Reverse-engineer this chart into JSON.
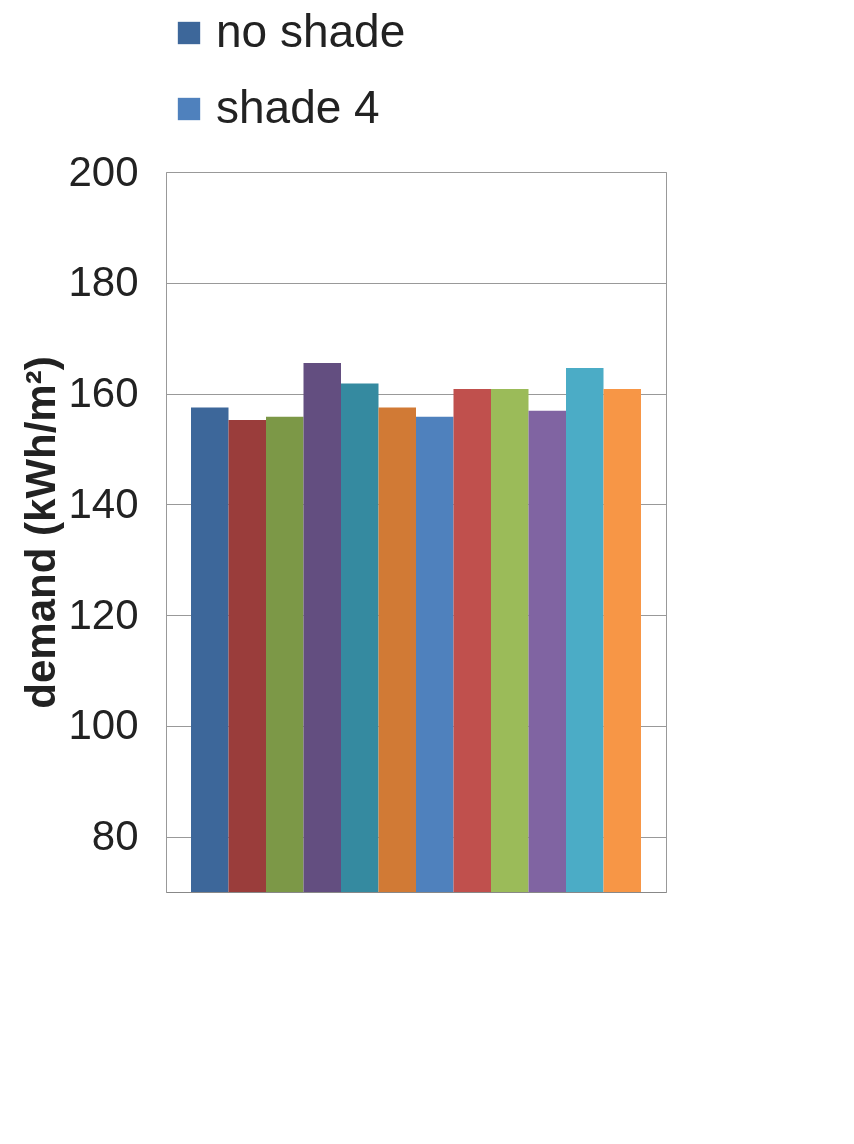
{
  "chart_data": {
    "type": "bar",
    "ylabel": "demand (kWh/m²)",
    "categories": [
      null
    ],
    "series": [
      {
        "name": "no shade",
        "color": "#3d679a",
        "values": [
          157.5
        ]
      },
      {
        "color": "#9a3d3b",
        "values": [
          155.2
        ]
      },
      {
        "color": "#7c9847",
        "values": [
          155.8
        ]
      },
      {
        "color": "#634e80",
        "values": [
          165.5
        ]
      },
      {
        "color": "#358aa0",
        "values": [
          161.8
        ]
      },
      {
        "color": "#d17a35",
        "values": [
          157.5
        ]
      },
      {
        "name": "shade 4",
        "color": "#4f81bd",
        "values": [
          155.8
        ]
      },
      {
        "color": "#c0504d",
        "values": [
          160.8
        ]
      },
      {
        "color": "#9bbb59",
        "values": [
          160.8
        ]
      },
      {
        "color": "#8064a2",
        "values": [
          156.9
        ]
      },
      {
        "color": "#4bacc6",
        "values": [
          164.6
        ]
      },
      {
        "color": "#f79646",
        "values": [
          160.8
        ]
      }
    ],
    "ylim": [
      70,
      200
    ],
    "yticks": [
      80,
      100,
      120,
      140,
      160,
      180,
      200
    ],
    "grid": "y",
    "legend": "top left"
  }
}
